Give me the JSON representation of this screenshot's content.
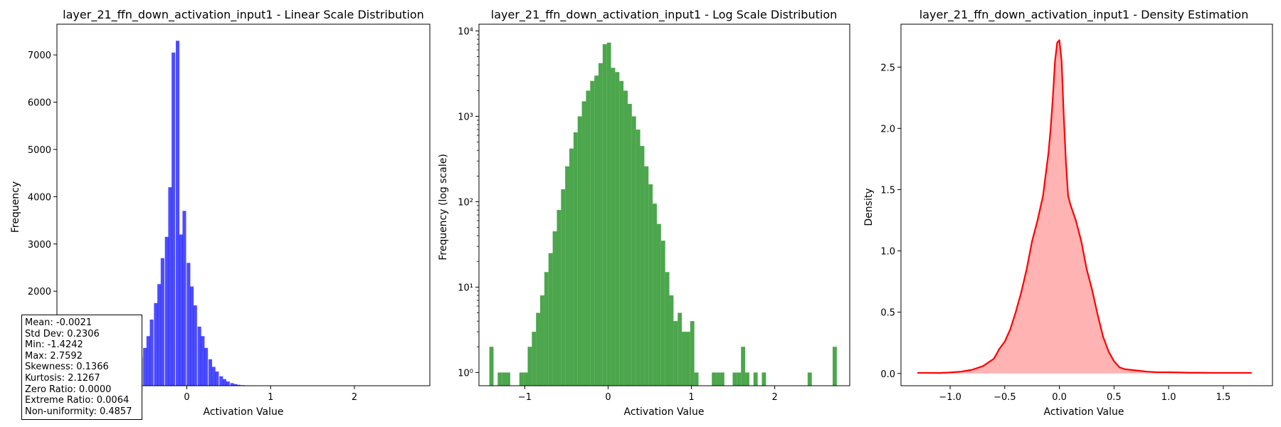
{
  "chart_data": [
    {
      "type": "bar",
      "title": "layer_21_ffn_down_activation_input1 - Linear Scale Distribution",
      "xlabel": "Activation Value",
      "ylabel": "Frequency",
      "xlim": [
        -1.55,
        2.9
      ],
      "ylim": [
        0,
        7650
      ],
      "xticks": [
        0,
        1,
        2
      ],
      "yticks": [
        1000,
        2000,
        3000,
        4000,
        5000,
        6000,
        7000
      ],
      "color": "#0000ff",
      "bins": {
        "x": [
          -1.41,
          -1.37,
          -1.33,
          -1.28,
          -1.24,
          -1.2,
          -1.15,
          -1.11,
          -1.07,
          -1.02,
          -0.98,
          -0.94,
          -0.89,
          -0.85,
          -0.81,
          -0.76,
          -0.72,
          -0.68,
          -0.63,
          -0.59,
          -0.55,
          -0.5,
          -0.46,
          -0.42,
          -0.37,
          -0.33,
          -0.29,
          -0.24,
          -0.2,
          -0.16,
          -0.11,
          -0.07,
          -0.03,
          0.02,
          0.06,
          0.1,
          0.15,
          0.19,
          0.23,
          0.28,
          0.32,
          0.36,
          0.41,
          0.45,
          0.49,
          0.54,
          0.58,
          0.62,
          0.67,
          0.71,
          0.75,
          0.8,
          0.84,
          0.88,
          0.93,
          0.97,
          1.01,
          1.06,
          1.1,
          1.14,
          1.19,
          1.23,
          1.27,
          1.32,
          1.36,
          1.4,
          1.45,
          1.49,
          1.53,
          1.58,
          1.62,
          1.66,
          1.71,
          1.75,
          1.79,
          1.84,
          1.88,
          1.92,
          1.97,
          2.01,
          2.05,
          2.1,
          2.14,
          2.18,
          2.23,
          2.27,
          2.31,
          2.36,
          2.4,
          2.44,
          2.49,
          2.53,
          2.57,
          2.62,
          2.66,
          2.7,
          2.75
        ],
        "values": [
          2,
          0,
          0,
          1,
          1,
          1,
          0,
          0,
          0,
          2,
          4,
          8,
          14,
          25,
          45,
          60,
          120,
          200,
          320,
          450,
          600,
          800,
          1050,
          1400,
          1750,
          2150,
          2700,
          3150,
          4200,
          7050,
          7300,
          3200,
          3700,
          2600,
          2100,
          1700,
          1250,
          1050,
          800,
          560,
          400,
          300,
          200,
          140,
          90,
          55,
          35,
          20,
          12,
          8,
          5,
          8,
          3,
          3,
          0,
          0,
          0,
          0,
          1,
          0,
          0,
          0,
          0,
          1,
          1,
          1,
          0,
          1,
          0,
          1,
          0,
          0,
          0,
          0,
          0,
          0,
          1,
          1,
          0,
          0,
          0,
          0,
          0,
          0,
          0,
          0,
          0,
          0,
          0,
          1,
          0,
          0,
          0,
          0,
          0,
          0,
          2
        ]
      },
      "stats": [
        "Mean: -0.0021",
        "Std Dev: 0.2306",
        "Min: -1.4242",
        "Max: 2.7592",
        "Skewness: 0.1366",
        "Kurtosis: 2.1267",
        "Zero Ratio: 0.0000",
        "Extreme Ratio: 0.0064",
        "Non-uniformity: 0.4857"
      ]
    },
    {
      "type": "bar",
      "title": "layer_21_ffn_down_activation_input1 - Log Scale Distribution",
      "xlabel": "Activation Value",
      "ylabel": "Frequency (log scale)",
      "yscale": "log",
      "xlim": [
        -1.55,
        2.9
      ],
      "ylim": [
        0.7,
        12000
      ],
      "xticks": [
        -1,
        0,
        1,
        2
      ],
      "xtick_labels": [
        "−1",
        "0",
        "1",
        "2"
      ],
      "yticks": [
        1,
        10,
        100,
        1000,
        10000
      ],
      "ytick_labels": [
        "10⁰",
        "10¹",
        "10²",
        "10³",
        "10⁴"
      ],
      "color": "#4ca64c",
      "bins": {
        "x": [
          -1.4,
          -1.35,
          -1.3,
          -1.25,
          -1.2,
          -1.14,
          -1.09,
          -1.04,
          -0.99,
          -0.94,
          -0.89,
          -0.84,
          -0.79,
          -0.74,
          -0.69,
          -0.64,
          -0.59,
          -0.54,
          -0.49,
          -0.44,
          -0.39,
          -0.34,
          -0.29,
          -0.24,
          -0.19,
          -0.14,
          -0.09,
          -0.04,
          0.01,
          0.06,
          0.11,
          0.16,
          0.21,
          0.26,
          0.31,
          0.36,
          0.41,
          0.46,
          0.51,
          0.56,
          0.61,
          0.66,
          0.71,
          0.76,
          0.81,
          0.86,
          0.91,
          0.96,
          1.01,
          1.06,
          1.11,
          1.17,
          1.22,
          1.27,
          1.32,
          1.37,
          1.42,
          1.47,
          1.52,
          1.57,
          1.62,
          1.67,
          1.72,
          1.77,
          1.82,
          1.87,
          1.92,
          1.97,
          2.02,
          2.07,
          2.12,
          2.17,
          2.22,
          2.27,
          2.32,
          2.37,
          2.42,
          2.47,
          2.52,
          2.57,
          2.62,
          2.67,
          2.72,
          2.77
        ],
        "values": [
          2,
          0,
          1,
          1,
          1,
          0,
          0,
          1,
          1,
          2,
          3,
          5,
          8,
          15,
          25,
          45,
          80,
          140,
          260,
          420,
          650,
          1000,
          1500,
          2000,
          2600,
          3000,
          4200,
          7000,
          7300,
          3700,
          3300,
          2600,
          2000,
          1400,
          1000,
          700,
          450,
          260,
          160,
          95,
          55,
          35,
          15,
          8,
          4,
          5,
          3,
          3,
          4,
          1,
          0,
          0,
          0,
          1,
          1,
          1,
          0,
          0,
          1,
          1,
          2,
          1,
          0,
          1,
          0,
          1,
          0,
          0,
          0,
          0,
          0,
          0,
          0,
          0,
          0,
          0,
          1,
          0,
          0,
          0,
          0,
          0,
          2,
          0
        ]
      }
    },
    {
      "type": "area",
      "title": "layer_21_ffn_down_activation_input1 - Density Estimation",
      "xlabel": "Activation Value",
      "ylabel": "Density",
      "xlim": [
        -1.45,
        1.95
      ],
      "ylim": [
        -0.1,
        2.85
      ],
      "xticks": [
        -1.0,
        -0.5,
        0.0,
        0.5,
        1.0,
        1.5
      ],
      "xtick_labels": [
        "−1.0",
        "−0.5",
        "0.0",
        "0.5",
        "1.0",
        "1.5"
      ],
      "yticks": [
        0.0,
        0.5,
        1.0,
        1.5,
        2.0,
        2.5
      ],
      "yticks_labels": [
        "0.0",
        "0.5",
        "1.0",
        "1.5",
        "2.0",
        "2.5"
      ],
      "line_color": "#ff0000",
      "fill_color": "#ff9999",
      "x": [
        -1.3,
        -1.2,
        -1.1,
        -1.0,
        -0.9,
        -0.8,
        -0.7,
        -0.6,
        -0.55,
        -0.5,
        -0.45,
        -0.4,
        -0.35,
        -0.3,
        -0.25,
        -0.2,
        -0.15,
        -0.1,
        -0.08,
        -0.06,
        -0.04,
        -0.02,
        0.0,
        0.02,
        0.04,
        0.06,
        0.08,
        0.1,
        0.15,
        0.2,
        0.25,
        0.3,
        0.35,
        0.4,
        0.45,
        0.5,
        0.55,
        0.6,
        0.65,
        0.7,
        0.8,
        0.9,
        1.0,
        1.1,
        1.2,
        1.3,
        1.4,
        1.5,
        1.6,
        1.7,
        1.76
      ],
      "y": [
        0.005,
        0.005,
        0.004,
        0.008,
        0.015,
        0.03,
        0.06,
        0.12,
        0.2,
        0.26,
        0.36,
        0.5,
        0.66,
        0.85,
        1.08,
        1.25,
        1.45,
        1.8,
        2.0,
        2.25,
        2.55,
        2.7,
        2.72,
        2.55,
        2.1,
        1.72,
        1.45,
        1.38,
        1.25,
        1.08,
        0.85,
        0.68,
        0.48,
        0.3,
        0.18,
        0.1,
        0.05,
        0.035,
        0.03,
        0.025,
        0.015,
        0.01,
        0.01,
        0.008,
        0.006,
        0.006,
        0.005,
        0.005,
        0.005,
        0.005,
        0.005
      ]
    }
  ]
}
